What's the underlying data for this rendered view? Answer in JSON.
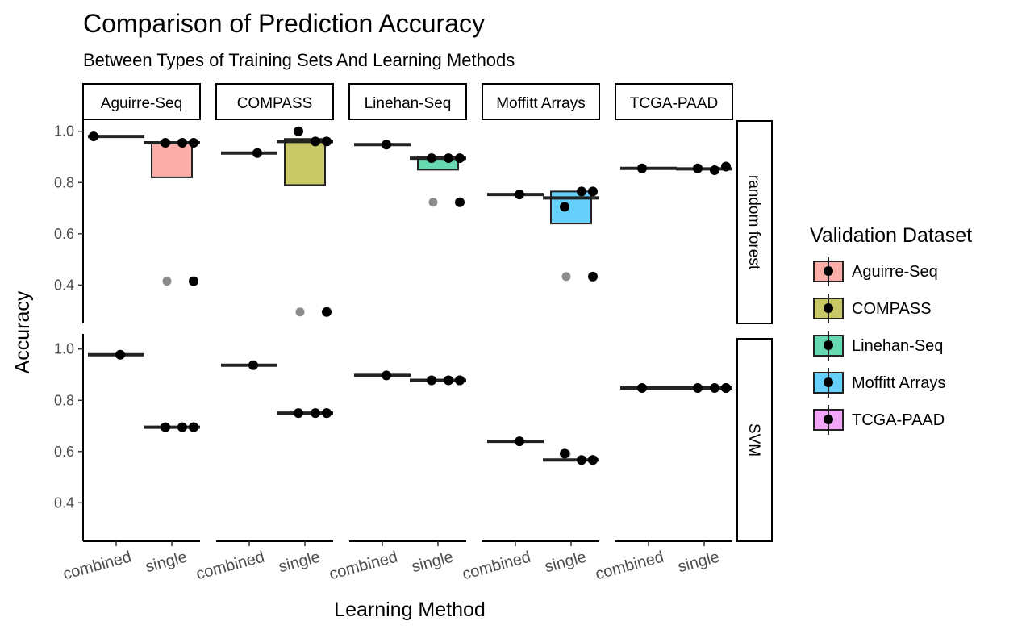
{
  "chart_data": {
    "type": "boxplot",
    "title": "Comparison of Prediction Accuracy",
    "subtitle": "Between Types of Training Sets And Learning Methods",
    "xlabel": "Learning Method",
    "ylabel": "Accuracy",
    "ylim": [
      0.25,
      1.04
    ],
    "yticks": [
      0.4,
      0.6,
      0.8,
      1.0
    ],
    "ytick_labels": [
      "0.4",
      "0.6",
      "0.8",
      "1.0"
    ],
    "categories": [
      "combined",
      "single"
    ],
    "facet_columns": [
      "Aguirre-Seq",
      "COMPASS",
      "Linehan-Seq",
      "Moffitt Arrays",
      "TCGA-PAAD"
    ],
    "facet_rows": [
      "random forest",
      "SVM"
    ],
    "legend": {
      "title": "Validation Dataset",
      "position": "right",
      "entries": [
        {
          "name": "Aguirre-Seq",
          "color": "#F8766D"
        },
        {
          "name": "COMPASS",
          "color": "#A3A500"
        },
        {
          "name": "Linehan-Seq",
          "color": "#00BF7D"
        },
        {
          "name": "Moffitt Arrays",
          "color": "#00B0F6"
        },
        {
          "name": "TCGA-PAAD",
          "color": "#E76BF3"
        }
      ]
    },
    "grid": false,
    "panels": [
      {
        "row": "random forest",
        "col": "Aguirre-Seq",
        "boxes": [
          {
            "method": "combined",
            "q1": 0.98,
            "median": 0.98,
            "q3": 0.98,
            "fill": false,
            "points": [
              0.98
            ],
            "outliers": []
          },
          {
            "method": "single",
            "q1": 0.82,
            "median": 0.955,
            "q3": 0.955,
            "fill": true,
            "points": [
              0.955,
              0.955,
              0.955,
              0.415
            ],
            "outliers": [
              0.415
            ]
          }
        ]
      },
      {
        "row": "random forest",
        "col": "COMPASS",
        "boxes": [
          {
            "method": "combined",
            "q1": 0.915,
            "median": 0.915,
            "q3": 0.915,
            "fill": false,
            "points": [
              0.915
            ],
            "outliers": []
          },
          {
            "method": "single",
            "q1": 0.79,
            "median": 0.96,
            "q3": 0.97,
            "fill": true,
            "points": [
              1.0,
              0.96,
              0.96,
              0.295
            ],
            "outliers": [
              0.295
            ]
          }
        ]
      },
      {
        "row": "random forest",
        "col": "Linehan-Seq",
        "boxes": [
          {
            "method": "combined",
            "q1": 0.948,
            "median": 0.948,
            "q3": 0.948,
            "fill": false,
            "points": [
              0.948
            ],
            "outliers": []
          },
          {
            "method": "single",
            "q1": 0.85,
            "median": 0.895,
            "q3": 0.9,
            "fill": true,
            "points": [
              0.895,
              0.895,
              0.895,
              0.723
            ],
            "outliers": [
              0.723
            ]
          }
        ]
      },
      {
        "row": "random forest",
        "col": "Moffitt Arrays",
        "boxes": [
          {
            "method": "combined",
            "q1": 0.753,
            "median": 0.753,
            "q3": 0.753,
            "fill": false,
            "points": [
              0.753
            ],
            "outliers": []
          },
          {
            "method": "single",
            "q1": 0.64,
            "median": 0.74,
            "q3": 0.765,
            "fill": true,
            "points": [
              0.705,
              0.765,
              0.765,
              0.433
            ],
            "outliers": [
              0.433
            ]
          }
        ]
      },
      {
        "row": "random forest",
        "col": "TCGA-PAAD",
        "boxes": [
          {
            "method": "combined",
            "q1": 0.855,
            "median": 0.855,
            "q3": 0.855,
            "fill": false,
            "points": [
              0.855
            ],
            "outliers": []
          },
          {
            "method": "single",
            "q1": 0.853,
            "median": 0.853,
            "q3": 0.853,
            "fill": false,
            "points": [
              0.855,
              0.848,
              0.862
            ],
            "outliers": []
          }
        ]
      },
      {
        "row": "SVM",
        "col": "Aguirre-Seq",
        "boxes": [
          {
            "method": "combined",
            "q1": 0.978,
            "median": 0.978,
            "q3": 0.978,
            "fill": false,
            "points": [
              0.978
            ],
            "outliers": []
          },
          {
            "method": "single",
            "q1": 0.695,
            "median": 0.695,
            "q3": 0.695,
            "fill": false,
            "points": [
              0.695,
              0.695,
              0.695,
              0.695
            ],
            "outliers": []
          }
        ]
      },
      {
        "row": "SVM",
        "col": "COMPASS",
        "boxes": [
          {
            "method": "combined",
            "q1": 0.937,
            "median": 0.937,
            "q3": 0.937,
            "fill": false,
            "points": [
              0.937
            ],
            "outliers": []
          },
          {
            "method": "single",
            "q1": 0.75,
            "median": 0.75,
            "q3": 0.75,
            "fill": false,
            "points": [
              0.75,
              0.75,
              0.75,
              0.75
            ],
            "outliers": []
          }
        ]
      },
      {
        "row": "SVM",
        "col": "Linehan-Seq",
        "boxes": [
          {
            "method": "combined",
            "q1": 0.897,
            "median": 0.897,
            "q3": 0.897,
            "fill": false,
            "points": [
              0.897
            ],
            "outliers": []
          },
          {
            "method": "single",
            "q1": 0.878,
            "median": 0.878,
            "q3": 0.878,
            "fill": false,
            "points": [
              0.878,
              0.878,
              0.878,
              0.878
            ],
            "outliers": []
          }
        ]
      },
      {
        "row": "SVM",
        "col": "Moffitt Arrays",
        "boxes": [
          {
            "method": "combined",
            "q1": 0.64,
            "median": 0.64,
            "q3": 0.64,
            "fill": false,
            "points": [
              0.64
            ],
            "outliers": []
          },
          {
            "method": "single",
            "q1": 0.567,
            "median": 0.567,
            "q3": 0.567,
            "fill": false,
            "points": [
              0.592,
              0.567,
              0.567,
              0.567
            ],
            "outliers": [
              0.592
            ]
          }
        ]
      },
      {
        "row": "SVM",
        "col": "TCGA-PAAD",
        "boxes": [
          {
            "method": "combined",
            "q1": 0.848,
            "median": 0.848,
            "q3": 0.848,
            "fill": false,
            "points": [
              0.848
            ],
            "outliers": []
          },
          {
            "method": "single",
            "q1": 0.848,
            "median": 0.848,
            "q3": 0.848,
            "fill": false,
            "points": [
              0.848,
              0.848,
              0.848,
              0.848
            ],
            "outliers": []
          }
        ]
      }
    ]
  }
}
